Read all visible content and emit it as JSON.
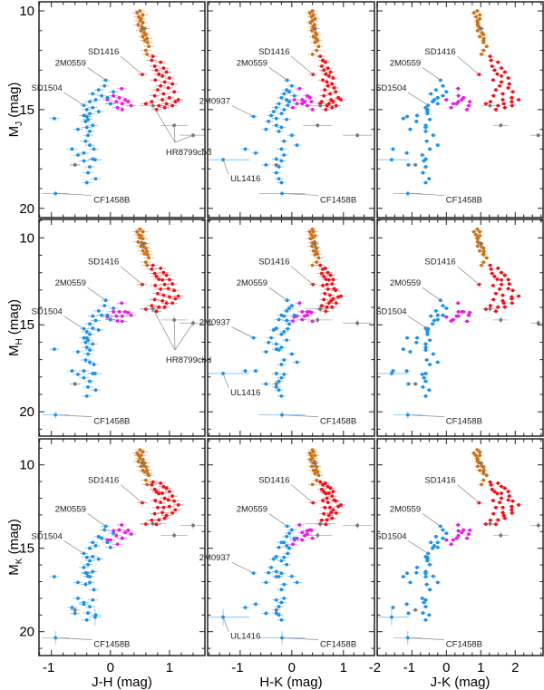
{
  "chart_data": {
    "type": "scatter",
    "layout": "3x3 grid",
    "grid": false,
    "colors": {
      "orange": "#c8731a",
      "red": "#e8141c",
      "magenta": "#e020e0",
      "blue": "#1e90e6",
      "gray": "#777777"
    },
    "columns": [
      {
        "xlabel": "J-H (mag)",
        "xlim": [
          -1.21,
          1.6
        ],
        "ticks": [
          -1,
          0,
          1
        ],
        "minor_step": 0.2
      },
      {
        "xlabel": "H-K (mag)",
        "xlim": [
          -1.63,
          1.6
        ],
        "ticks": [
          -1,
          0,
          1
        ],
        "minor_step": 0.2
      },
      {
        "xlabel": "J-K (mag)",
        "xlim": [
          -2.01,
          2.81
        ],
        "ticks": [
          -2,
          -1,
          0,
          1,
          2
        ],
        "minor_step": 0.25
      }
    ],
    "rows": [
      {
        "ylabel": {
          "main": "M",
          "sub": "J",
          "unit": " (mag)"
        },
        "ylim": [
          20.47,
          9.54
        ],
        "ticks": [
          10,
          15,
          20
        ],
        "minor_step": 1
      },
      {
        "ylabel": {
          "main": "M",
          "sub": "H",
          "unit": " (mag)"
        },
        "ylim": [
          21.4,
          8.94
        ],
        "ticks": [
          10,
          15,
          20
        ],
        "minor_step": 1
      },
      {
        "ylabel": {
          "main": "M",
          "sub": "K",
          "unit": " (mag)"
        },
        "ylim": [
          21.43,
          8.44
        ],
        "ticks": [
          10,
          15,
          20
        ],
        "minor_step": 1
      }
    ],
    "default_mag_err": 0.06,
    "objects_fields": [
      "M_J",
      "J-H",
      "H-K"
    ],
    "objects": {
      "orange": [
        [
          10.0,
          0.5,
          0.4
        ],
        [
          10.1,
          0.45,
          0.35
        ],
        [
          10.2,
          0.55,
          0.42
        ],
        [
          10.3,
          0.48,
          0.38
        ],
        [
          10.4,
          0.52,
          0.45
        ],
        [
          10.5,
          0.5,
          0.4
        ],
        [
          10.6,
          0.55,
          0.36
        ],
        [
          10.7,
          0.47,
          0.44
        ],
        [
          10.8,
          0.53,
          0.41
        ],
        [
          10.9,
          0.58,
          0.43
        ],
        [
          11.0,
          0.52,
          0.39
        ],
        [
          11.1,
          0.57,
          0.46
        ],
        [
          11.2,
          0.6,
          0.48
        ],
        [
          11.3,
          0.55,
          0.42
        ],
        [
          11.4,
          0.62,
          0.47
        ],
        [
          11.5,
          0.58,
          0.5
        ],
        [
          11.6,
          0.63,
          0.45
        ],
        [
          11.8,
          0.65,
          0.52
        ],
        [
          12.0,
          0.6,
          0.48
        ],
        [
          12.2,
          0.62,
          0.4
        ]
      ],
      "red": [
        [
          12.3,
          0.72,
          0.55
        ],
        [
          12.5,
          0.7,
          0.6
        ],
        [
          12.6,
          0.85,
          0.65
        ],
        [
          12.8,
          0.75,
          0.58
        ],
        [
          12.9,
          0.9,
          0.7
        ],
        [
          13.0,
          0.78,
          0.62
        ],
        [
          13.1,
          0.95,
          0.75
        ],
        [
          13.2,
          0.82,
          0.66
        ],
        [
          13.3,
          0.88,
          0.72
        ],
        [
          13.4,
          1.0,
          0.8
        ],
        [
          13.5,
          0.76,
          0.6
        ],
        [
          13.6,
          0.92,
          0.68
        ],
        [
          13.7,
          1.05,
          0.78
        ],
        [
          13.8,
          0.85,
          0.7
        ],
        [
          13.9,
          0.98,
          0.82
        ],
        [
          14.0,
          0.8,
          0.64
        ],
        [
          14.1,
          1.08,
          0.85
        ],
        [
          14.2,
          0.9,
          0.74
        ],
        [
          14.3,
          0.75,
          0.62
        ],
        [
          14.4,
          1.0,
          0.9
        ],
        [
          14.5,
          0.88,
          0.76
        ],
        [
          14.6,
          1.1,
          0.8
        ],
        [
          14.6,
          0.7,
          0.58
        ],
        [
          14.7,
          0.95,
          0.72
        ],
        [
          14.8,
          0.82,
          0.68
        ],
        [
          14.8,
          1.05,
          0.86
        ],
        [
          14.9,
          0.92,
          0.78
        ],
        [
          15.0,
          0.78,
          0.66
        ],
        [
          14.7,
          0.6,
          0.55
        ],
        [
          14.5,
          1.15,
          0.95
        ]
      ],
      "magenta": [
        [
          13.94,
          0.19,
          0.15
        ],
        [
          14.3,
          0.05,
          0.3
        ],
        [
          14.4,
          0.15,
          0.35
        ],
        [
          14.5,
          0.25,
          0.2
        ],
        [
          14.5,
          -0.05,
          0.05
        ],
        [
          14.6,
          0.1,
          0.25
        ],
        [
          14.6,
          0.3,
          0.38
        ],
        [
          14.7,
          0.2,
          0.1
        ],
        [
          14.7,
          0.0,
          0.2
        ],
        [
          14.8,
          0.35,
          0.3
        ],
        [
          14.9,
          0.12,
          0.02
        ],
        [
          15.0,
          0.2,
          0.4
        ]
      ],
      "blue": [
        [
          13.8,
          -0.1,
          0.0
        ],
        [
          14.0,
          -0.2,
          -0.1
        ],
        [
          14.1,
          0.05,
          -0.05
        ],
        [
          14.2,
          -0.3,
          -0.15
        ],
        [
          14.3,
          -0.15,
          0.05
        ],
        [
          14.4,
          -0.05,
          -0.2
        ],
        [
          14.5,
          -0.25,
          -0.1
        ],
        [
          14.6,
          -0.35,
          -0.05
        ],
        [
          14.7,
          0.0,
          -0.25
        ],
        [
          14.9,
          -0.3,
          -0.3
        ],
        [
          15.0,
          -0.4,
          -0.15
        ],
        [
          15.1,
          -0.2,
          -0.35
        ],
        [
          15.2,
          -0.35,
          -0.2
        ],
        [
          15.3,
          -0.45,
          -0.4
        ],
        [
          15.45,
          -0.95,
          -0.3
        ],
        [
          15.5,
          -0.38,
          -0.1
        ],
        [
          15.6,
          -0.42,
          -0.45
        ],
        [
          15.8,
          -0.3,
          -0.3
        ],
        [
          15.9,
          -0.4,
          -0.2
        ],
        [
          16.0,
          -0.55,
          -0.5
        ],
        [
          16.1,
          -0.35,
          -0.25
        ],
        [
          16.3,
          -0.38,
          0.0
        ],
        [
          16.6,
          -0.42,
          -0.15
        ],
        [
          16.8,
          -0.35,
          0.1
        ],
        [
          17.0,
          -0.65,
          -0.9
        ],
        [
          17.0,
          -0.28,
          -0.2
        ],
        [
          17.2,
          -0.45,
          -0.7
        ],
        [
          17.3,
          -0.55,
          -0.15
        ],
        [
          17.5,
          -0.3,
          -0.3
        ],
        [
          17.6,
          -0.45,
          -0.2
        ],
        [
          17.8,
          -0.6,
          -0.5
        ],
        [
          17.9,
          -0.35,
          -0.25
        ],
        [
          18.2,
          -0.38,
          -0.3
        ],
        [
          18.5,
          -0.25,
          -0.25
        ],
        [
          18.7,
          -0.4,
          -0.2
        ]
      ],
      "gray": [
        [
          17.8,
          -0.6,
          -0.3
        ],
        [
          10.9,
          0.55,
          0.45
        ]
      ]
    },
    "labeled_objects": [
      {
        "label": "SD1416",
        "group": "red",
        "values": [
          13.22,
          0.54,
          0.41
        ],
        "err": [
          0.06,
          0.06,
          0.06
        ],
        "panels": [
          [
            0,
            0
          ],
          [
            0,
            1
          ],
          [
            0,
            2
          ],
          [
            1,
            0
          ],
          [
            1,
            1
          ],
          [
            1,
            2
          ],
          [
            2,
            0
          ],
          [
            2,
            1
          ],
          [
            2,
            2
          ]
        ]
      },
      {
        "label": "2M0559",
        "group": "blue",
        "values": [
          13.51,
          -0.08,
          -0.09
        ],
        "err": [
          0.05,
          0.05,
          0.05
        ],
        "panels": [
          [
            0,
            0
          ],
          [
            0,
            1
          ],
          [
            0,
            2
          ],
          [
            1,
            0
          ],
          [
            1,
            1
          ],
          [
            1,
            2
          ],
          [
            2,
            0
          ],
          [
            2,
            1
          ],
          [
            2,
            2
          ]
        ]
      },
      {
        "label": "SD1504",
        "group": "blue",
        "values": [
          14.78,
          -0.45,
          -0.08
        ],
        "err": [
          0.05,
          0.05,
          0.05
        ],
        "panels": [
          [
            0,
            0
          ],
          [
            0,
            2
          ],
          [
            1,
            0
          ],
          [
            1,
            2
          ],
          [
            2,
            0
          ],
          [
            2,
            2
          ]
        ]
      },
      {
        "label": "2M0937",
        "group": "blue",
        "values": [
          15.35,
          -0.4,
          -0.74
        ],
        "err": [
          0.05,
          0.05,
          0.05
        ],
        "panels": [
          [
            0,
            1
          ],
          [
            1,
            1
          ],
          [
            2,
            1
          ]
        ]
      },
      {
        "label": "UL1416",
        "group": "blue",
        "values": [
          17.54,
          -0.26,
          -1.33
        ],
        "err": [
          0.05,
          0.1,
          0.5
        ],
        "panels": [
          [
            0,
            1
          ],
          [
            1,
            1
          ],
          [
            2,
            1
          ]
        ]
      },
      {
        "label": "CF1458B",
        "group": "blue",
        "values": [
          19.25,
          -0.93,
          -0.19
        ],
        "err": [
          0.1,
          0.2,
          0.4
        ],
        "panels": [
          [
            0,
            0
          ],
          [
            0,
            1
          ],
          [
            0,
            2
          ],
          [
            1,
            0
          ],
          [
            1,
            1
          ],
          [
            1,
            2
          ],
          [
            2,
            0
          ],
          [
            2,
            1
          ],
          [
            2,
            2
          ]
        ]
      }
    ],
    "group_annotations": [
      {
        "label": "HR8799cbd",
        "group": "gray",
        "members": [
          [
            14.8,
            0.72,
            0.55
          ],
          [
            15.8,
            1.08,
            0.5
          ],
          [
            16.3,
            1.4,
            1.27
          ]
        ],
        "err": [
          0.1,
          0.2,
          0.2
        ],
        "panels": [
          [
            0,
            0
          ],
          [
            1,
            0
          ]
        ]
      }
    ]
  }
}
